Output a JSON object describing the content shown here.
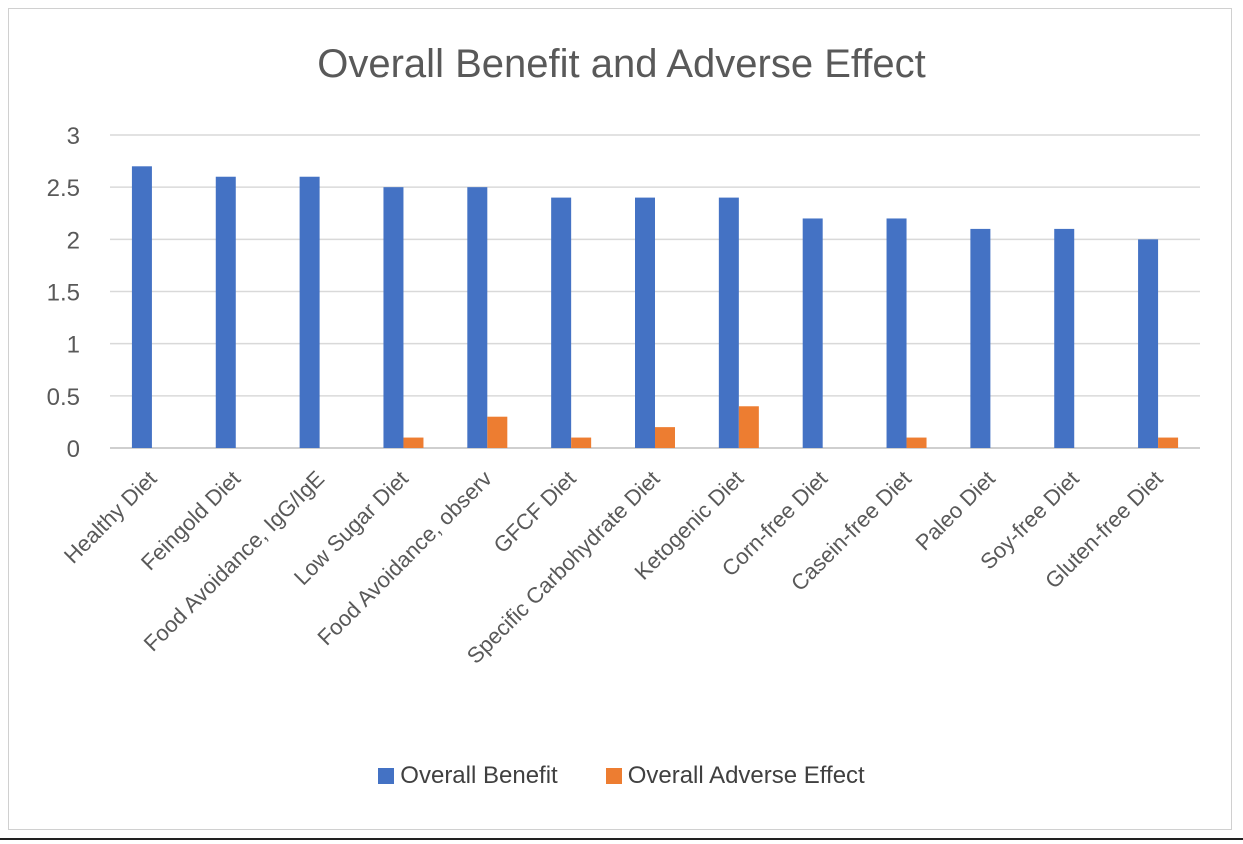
{
  "chart_data": {
    "type": "bar",
    "title": "Overall Benefit and Adverse Effect",
    "xlabel": "",
    "ylabel": "",
    "ylim": [
      0,
      3
    ],
    "yticks": [
      "0",
      "0.5",
      "1",
      "1.5",
      "2",
      "2.5",
      "3"
    ],
    "yticks_values": [
      0,
      0.5,
      1,
      1.5,
      2,
      2.5,
      3
    ],
    "grid": true,
    "legend_position": "bottom",
    "categories": [
      "Healthy Diet",
      "Feingold Diet",
      "Food Avoidance, IgG/IgE",
      "Low Sugar Diet",
      "Food Avoidance, observ",
      "GFCF Diet",
      "Specific Carbohydrate Diet",
      "Ketogenic Diet",
      "Corn-free Diet",
      "Casein-free Diet",
      "Paleo Diet",
      "Soy-free Diet",
      "Gluten-free Diet"
    ],
    "series": [
      {
        "name": "Overall Benefit",
        "color": "#4472C4",
        "values": [
          2.7,
          2.6,
          2.6,
          2.5,
          2.5,
          2.4,
          2.4,
          2.4,
          2.2,
          2.2,
          2.1,
          2.1,
          2.0
        ]
      },
      {
        "name": "Overall Adverse Effect",
        "color": "#ED7D31",
        "values": [
          0,
          0,
          0,
          0.1,
          0.3,
          0.1,
          0.2,
          0.4,
          0,
          0.1,
          0,
          0,
          0.1
        ]
      }
    ]
  }
}
